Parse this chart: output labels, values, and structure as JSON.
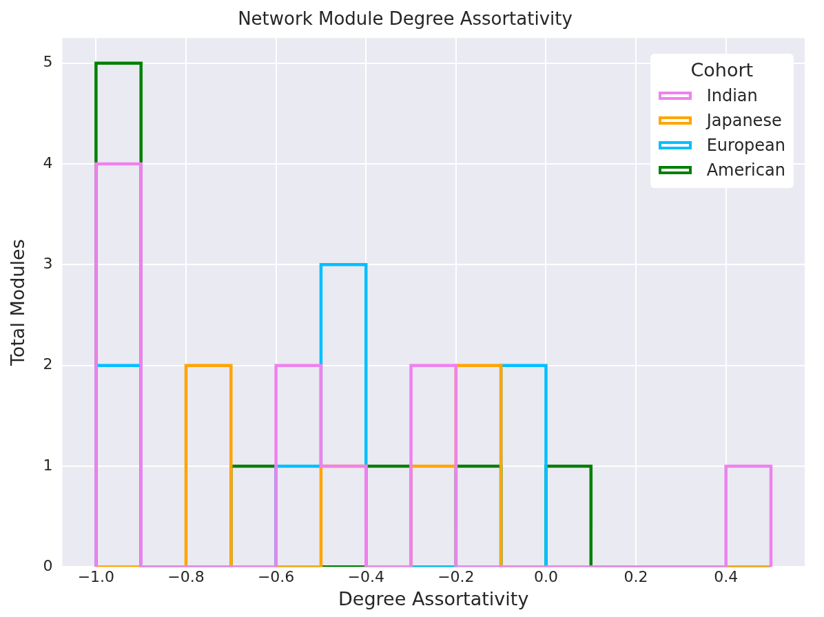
{
  "chart_data": {
    "type": "histogram",
    "title": "Network Module Degree Assortativity",
    "xlabel": "Degree Assortativity",
    "ylabel": "Total Modules",
    "legend_title": "Cohort",
    "legend": "top right",
    "grid": true,
    "bins": [
      -1.0,
      -0.9,
      -0.8,
      -0.7,
      -0.6,
      -0.5,
      -0.4,
      -0.3,
      -0.2,
      -0.1,
      0.0,
      0.1,
      0.2,
      0.3,
      0.4,
      0.5
    ],
    "series": [
      {
        "name": "Indian",
        "color": "#ee82ee",
        "values": [
          4,
          0,
          0,
          0,
          2,
          1,
          0,
          2,
          0,
          0,
          0,
          0,
          0,
          0,
          1
        ]
      },
      {
        "name": "Japanese",
        "color": "#ffa500",
        "values": [
          0,
          0,
          2,
          0,
          0,
          1,
          0,
          1,
          2,
          0,
          0,
          0,
          0,
          0,
          0
        ]
      },
      {
        "name": "European",
        "color": "#00bfff",
        "values": [
          2,
          0,
          0,
          0,
          1,
          3,
          0,
          0,
          0,
          2,
          0,
          0,
          0,
          0,
          0
        ]
      },
      {
        "name": "American",
        "color": "#008000",
        "values": [
          5,
          0,
          0,
          1,
          0,
          0,
          1,
          0,
          1,
          0,
          1,
          0,
          0,
          0,
          0
        ]
      }
    ],
    "xlim": [
      -1.075,
      0.575
    ],
    "ylim": [
      0,
      5.25
    ],
    "xticks": [
      {
        "value": -1.0,
        "label": "−1.0"
      },
      {
        "value": -0.8,
        "label": "−0.8"
      },
      {
        "value": -0.6,
        "label": "−0.6"
      },
      {
        "value": -0.4,
        "label": "−0.4"
      },
      {
        "value": -0.2,
        "label": "−0.2"
      },
      {
        "value": 0.0,
        "label": "0.0"
      },
      {
        "value": 0.2,
        "label": "0.2"
      },
      {
        "value": 0.4,
        "label": "0.4"
      }
    ],
    "yticks": [
      0,
      1,
      2,
      3,
      4,
      5
    ]
  }
}
